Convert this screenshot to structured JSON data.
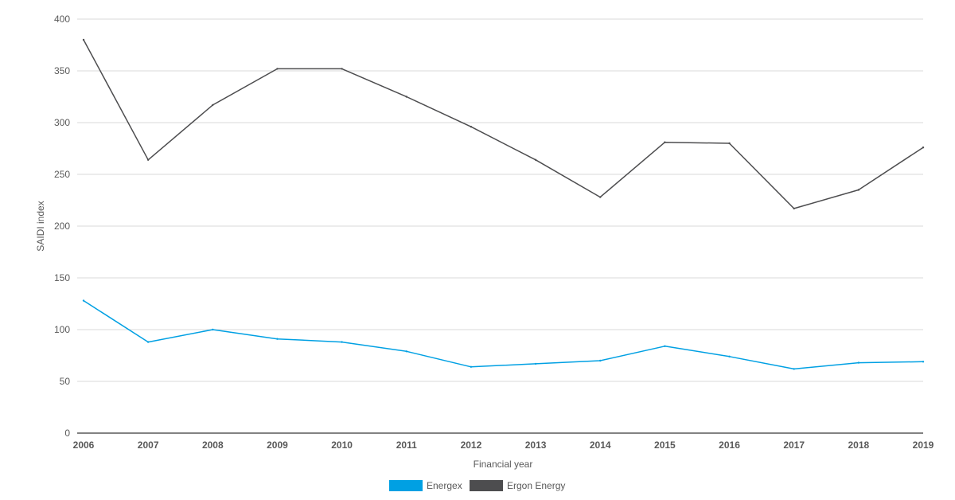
{
  "chart_data": {
    "type": "line",
    "title": "",
    "xlabel": "Financial year",
    "ylabel": "SAIDI index",
    "x": [
      "2006",
      "2007",
      "2008",
      "2009",
      "2010",
      "2011",
      "2012",
      "2013",
      "2014",
      "2015",
      "2016",
      "2017",
      "2018",
      "2019"
    ],
    "ylim": [
      0,
      400
    ],
    "yticks": [
      0,
      50,
      100,
      150,
      200,
      250,
      300,
      350,
      400
    ],
    "grid": true,
    "legend_position": "bottom",
    "series": [
      {
        "name": "Energex",
        "color": "#00a0e3",
        "values": [
          128,
          88,
          100,
          91,
          88,
          79,
          64,
          67,
          70,
          84,
          74,
          62,
          68,
          69
        ]
      },
      {
        "name": "Ergon Energy",
        "color": "#4d4d4f",
        "values": [
          380,
          264,
          317,
          352,
          352,
          325,
          296,
          264,
          228,
          281,
          280,
          217,
          235,
          276
        ]
      }
    ]
  }
}
